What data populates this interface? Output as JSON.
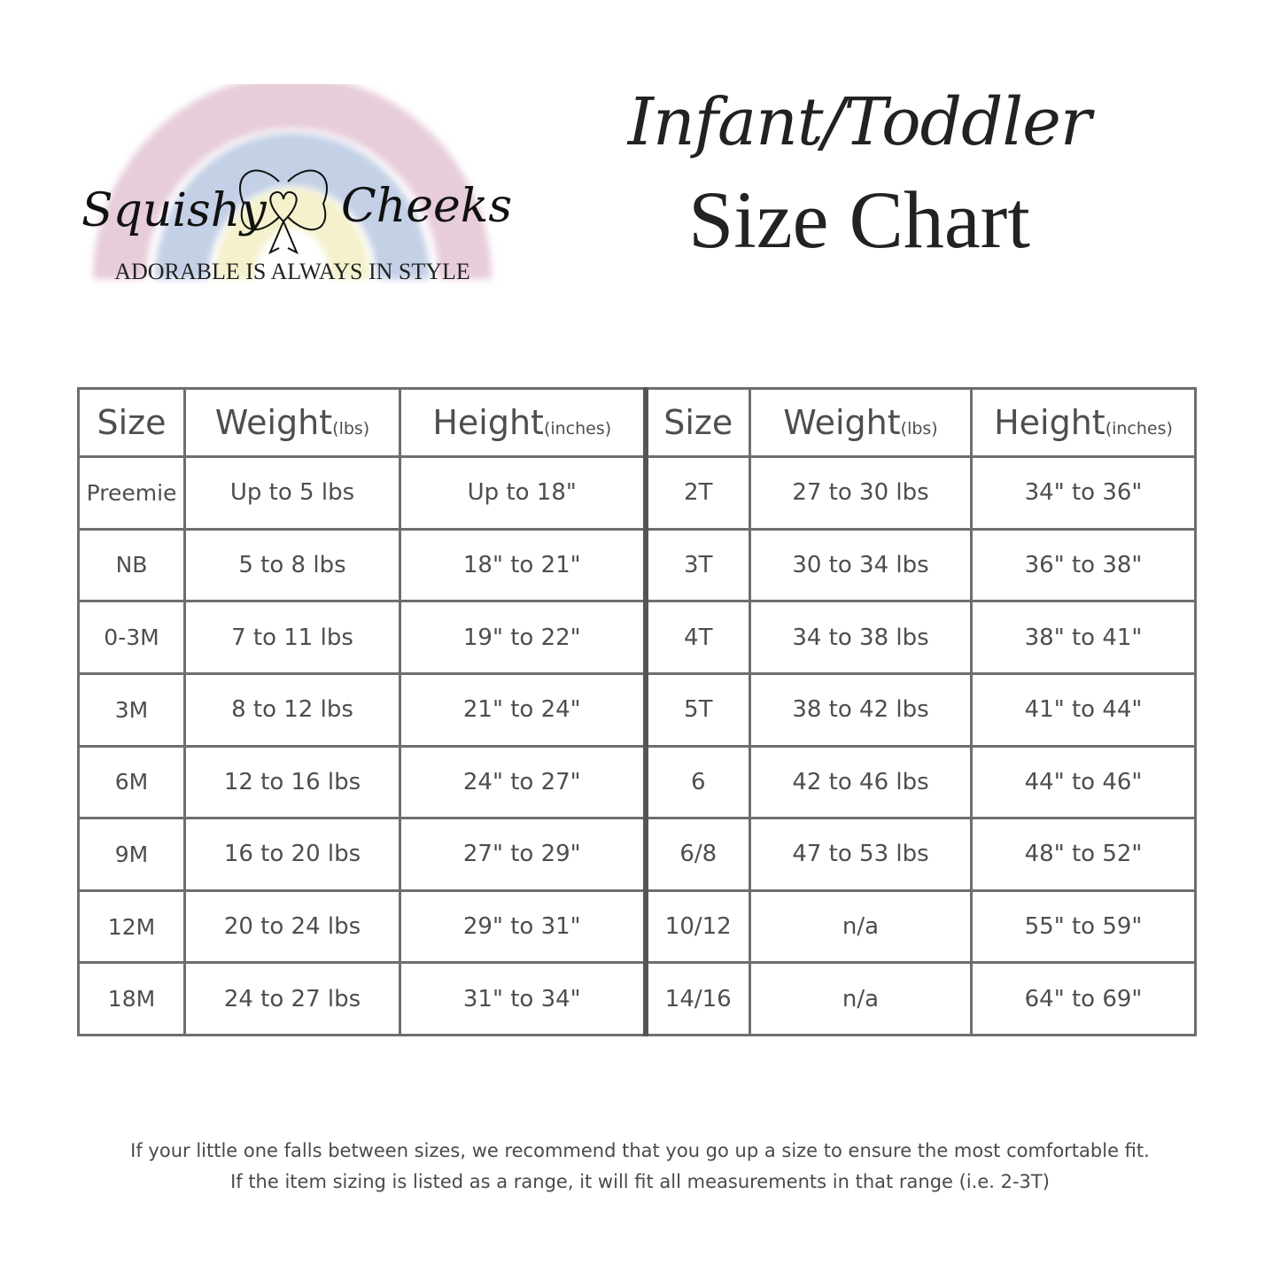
{
  "logo": {
    "brand_left": "Squishy",
    "brand_right": "Cheeks",
    "tagline": "ADORABLE IS ALWAYS IN STYLE",
    "colors": {
      "pink": "#e3c3d3",
      "blue": "#b9c8e2",
      "yellow": "#f3efc6"
    }
  },
  "title": {
    "line1": "Infant/Toddler",
    "line2": "Size Chart"
  },
  "table": {
    "headers": [
      {
        "label": "Size",
        "unit": ""
      },
      {
        "label": "Weight",
        "unit": "(lbs)"
      },
      {
        "label": "Height",
        "unit": "(inches)"
      },
      {
        "label": "Size",
        "unit": ""
      },
      {
        "label": "Weight",
        "unit": "(lbs)"
      },
      {
        "label": "Height",
        "unit": "(inches)"
      }
    ],
    "rows": [
      [
        "Preemie",
        "Up to 5 lbs",
        "Up to 18\"",
        "2T",
        "27 to 30 lbs",
        "34\" to 36\""
      ],
      [
        "NB",
        "5 to 8 lbs",
        "18\" to 21\"",
        "3T",
        "30 to 34 lbs",
        "36\" to 38\""
      ],
      [
        "0-3M",
        "7 to 11 lbs",
        "19\" to 22\"",
        "4T",
        "34 to 38 lbs",
        "38\" to 41\""
      ],
      [
        "3M",
        "8 to 12 lbs",
        "21\" to 24\"",
        "5T",
        "38 to 42 lbs",
        "41\" to 44\""
      ],
      [
        "6M",
        "12 to 16 lbs",
        "24\" to 27\"",
        "6",
        "42 to 46 lbs",
        "44\" to 46\""
      ],
      [
        "9M",
        "16 to 20 lbs",
        "27\" to 29\"",
        "6/8",
        "47 to 53 lbs",
        "48\" to 52\""
      ],
      [
        "12M",
        "20 to 24 lbs",
        "29\" to 31\"",
        "10/12",
        "n/a",
        "55\" to 59\""
      ],
      [
        "18M",
        "24 to 27 lbs",
        "31\" to 34\"",
        "14/16",
        "n/a",
        "64\" to 69\""
      ]
    ]
  },
  "note": {
    "line1": "If your little one falls between sizes, we recommend that you go up a size to ensure the most comfortable fit.",
    "line2": "If the item sizing is listed as a range, it will fit all measurements in that range (i.e. 2-3T)"
  }
}
